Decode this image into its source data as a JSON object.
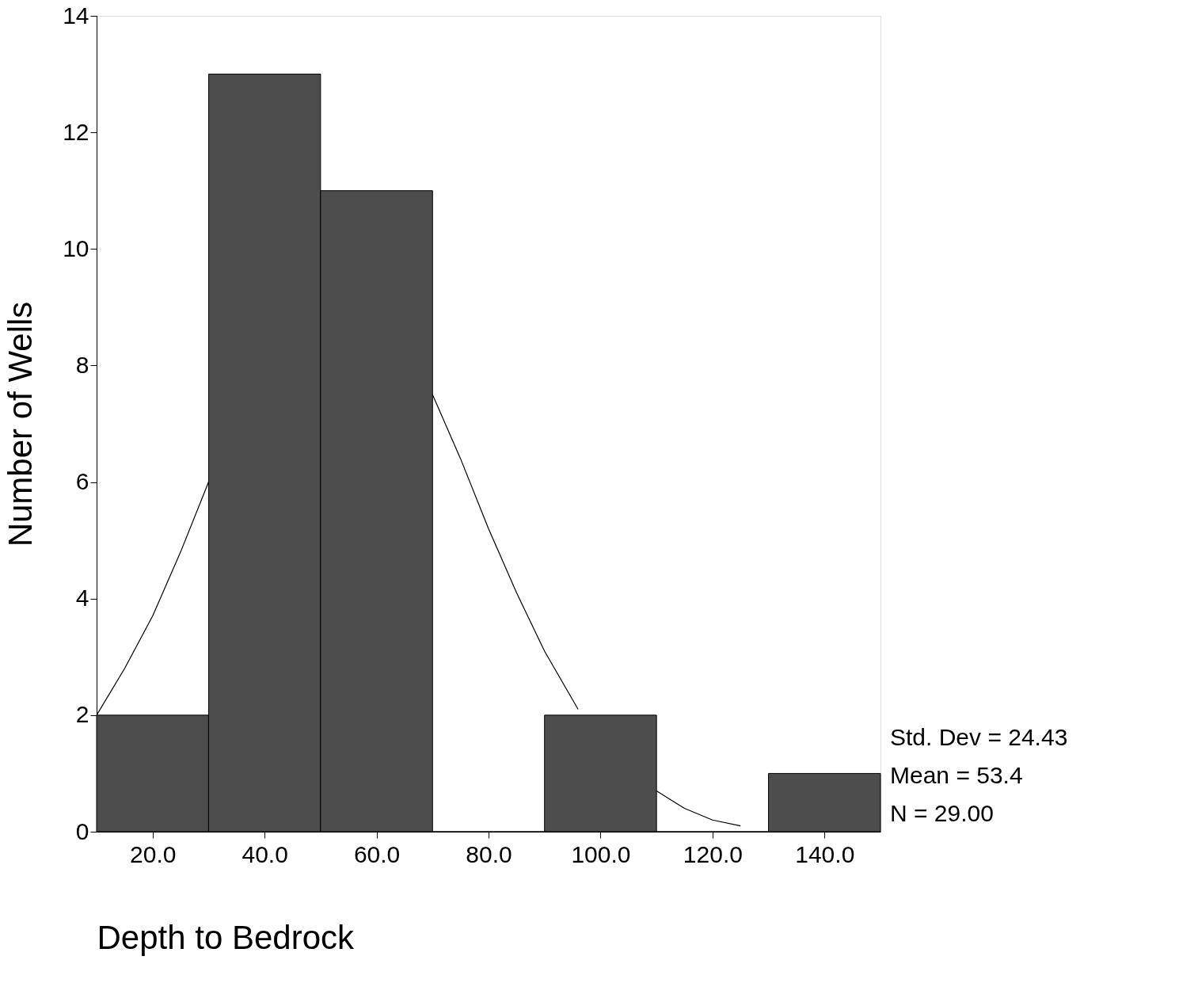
{
  "chart_data": {
    "type": "histogram",
    "xlabel": "Depth to Bedrock",
    "ylabel": "Number of Wells",
    "bins": [
      10,
      30,
      50,
      70,
      90,
      110,
      130,
      150
    ],
    "values": [
      2,
      13,
      11,
      0,
      2,
      0,
      1
    ],
    "color": "#4d4d4d",
    "xlim": [
      10,
      150
    ],
    "ylim": [
      0,
      14
    ],
    "xticks": [
      {
        "value": 20,
        "label": "20.0"
      },
      {
        "value": 40,
        "label": "40.0"
      },
      {
        "value": 60,
        "label": "60.0"
      },
      {
        "value": 80,
        "label": "80.0"
      },
      {
        "value": 100,
        "label": "100.0"
      },
      {
        "value": 120,
        "label": "120.0"
      },
      {
        "value": 140,
        "label": "140.0"
      }
    ],
    "yticks": [
      0,
      2,
      4,
      6,
      8,
      10,
      12,
      14
    ],
    "series": [
      {
        "type": "line",
        "color": "#000000",
        "x": [
          10,
          15,
          20,
          25,
          30,
          50,
          70,
          75,
          80,
          85,
          90,
          96,
          103,
          110,
          115,
          120,
          125
        ],
        "values": [
          2.0,
          2.8,
          3.7,
          4.8,
          6.0,
          null,
          7.5,
          6.4,
          5.2,
          4.1,
          3.1,
          2.1,
          null,
          0.7,
          0.4,
          0.2,
          0.1
        ]
      }
    ],
    "annotations": [
      "Std. Dev = 24.43",
      "Mean = 53.4",
      "N = 29.00"
    ]
  }
}
